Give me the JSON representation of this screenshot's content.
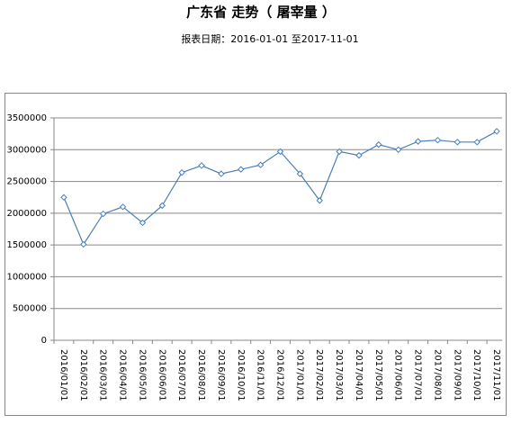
{
  "chart_data": {
    "type": "line",
    "title": "广东省 走势（ 屠宰量 ）",
    "subtitle": "报表日期：2016-01-01 至2017-11-01",
    "categories": [
      "2016/01/01",
      "2016/02/01",
      "2016/03/01",
      "2016/04/01",
      "2016/05/01",
      "2016/06/01",
      "2016/07/01",
      "2016/08/01",
      "2016/09/01",
      "2016/10/01",
      "2016/11/01",
      "2016/12/01",
      "2017/01/01",
      "2017/02/01",
      "2017/03/01",
      "2017/04/01",
      "2017/05/01",
      "2017/06/01",
      "2017/07/01",
      "2017/08/01",
      "2017/09/01",
      "2017/10/01",
      "2017/11/01"
    ],
    "series": [
      {
        "name": "屠宰量",
        "color": "#4a7ebb",
        "values": [
          2250000,
          1510000,
          1990000,
          2100000,
          1850000,
          2120000,
          2640000,
          2750000,
          2620000,
          2690000,
          2760000,
          2970000,
          2620000,
          2200000,
          2970000,
          2910000,
          3080000,
          3000000,
          3130000,
          3150000,
          3120000,
          3120000,
          3290000
        ]
      }
    ],
    "ylim": [
      0,
      3500000
    ],
    "yticks": [
      0,
      500000,
      1000000,
      1500000,
      2000000,
      2500000,
      3000000,
      3500000
    ],
    "grid": true
  }
}
